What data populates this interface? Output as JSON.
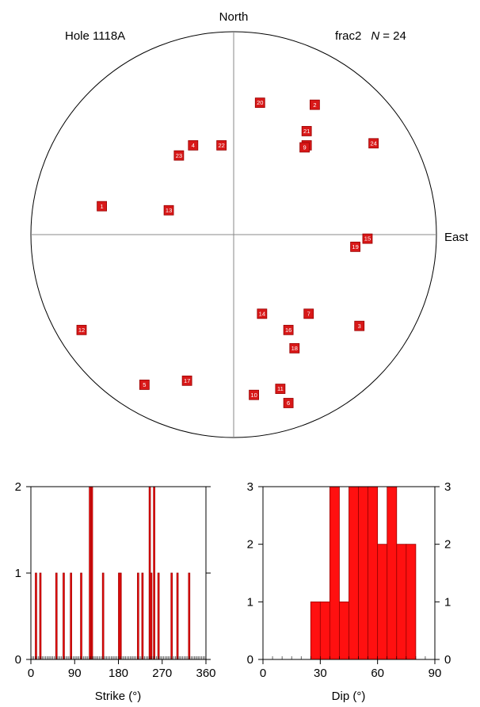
{
  "stereonet": {
    "north_label": "North",
    "east_label": "East",
    "hole_label": "Hole 1118A",
    "set_label": "frac2",
    "n_symbol": "N",
    "n_equals": "= 24"
  },
  "colors": {
    "fill": "#ff1010",
    "outline": "#990000",
    "axis": "#000000",
    "light_axis": "#888888"
  },
  "chart_data": [
    {
      "type": "scatter",
      "title": "",
      "projection": "stereonet",
      "points": [
        {
          "id": 1,
          "x": -0.65,
          "y": 0.14
        },
        {
          "id": 2,
          "x": 0.4,
          "y": 0.64
        },
        {
          "id": 3,
          "x": 0.62,
          "y": -0.45
        },
        {
          "id": 4,
          "x": -0.2,
          "y": 0.44
        },
        {
          "id": 5,
          "x": -0.44,
          "y": -0.74
        },
        {
          "id": 6,
          "x": 0.27,
          "y": -0.83
        },
        {
          "id": 7,
          "x": 0.37,
          "y": -0.39
        },
        {
          "id": 8,
          "x": 0.36,
          "y": 0.44
        },
        {
          "id": 9,
          "x": 0.35,
          "y": 0.43
        },
        {
          "id": 10,
          "x": 0.1,
          "y": -0.79
        },
        {
          "id": 11,
          "x": 0.23,
          "y": -0.76
        },
        {
          "id": 12,
          "x": -0.75,
          "y": -0.47
        },
        {
          "id": 13,
          "x": -0.32,
          "y": 0.12
        },
        {
          "id": 14,
          "x": 0.14,
          "y": -0.39
        },
        {
          "id": 15,
          "x": 0.66,
          "y": -0.02
        },
        {
          "id": 16,
          "x": 0.27,
          "y": -0.47
        },
        {
          "id": 17,
          "x": -0.23,
          "y": -0.72
        },
        {
          "id": 18,
          "x": 0.3,
          "y": -0.56
        },
        {
          "id": 19,
          "x": 0.6,
          "y": -0.06
        },
        {
          "id": 20,
          "x": 0.13,
          "y": 0.65
        },
        {
          "id": 21,
          "x": 0.36,
          "y": 0.51
        },
        {
          "id": 22,
          "x": -0.06,
          "y": 0.44
        },
        {
          "id": 23,
          "x": -0.27,
          "y": 0.39
        },
        {
          "id": 24,
          "x": 0.69,
          "y": 0.45
        }
      ]
    },
    {
      "type": "bar",
      "title": "",
      "xlabel": "Strike (°)",
      "ylabel": "",
      "xlim": [
        0,
        360
      ],
      "ylim": [
        0,
        2
      ],
      "xticks": [
        0,
        90,
        180,
        270,
        360
      ],
      "yticks": [
        0,
        1,
        2
      ],
      "bin_width": 3,
      "bins": [
        {
          "x": 9,
          "count": 1
        },
        {
          "x": 18,
          "count": 1
        },
        {
          "x": 51,
          "count": 1
        },
        {
          "x": 66,
          "count": 1
        },
        {
          "x": 81,
          "count": 1
        },
        {
          "x": 102,
          "count": 1
        },
        {
          "x": 120,
          "count": 2
        },
        {
          "x": 124,
          "count": 2
        },
        {
          "x": 147,
          "count": 1
        },
        {
          "x": 180,
          "count": 1
        },
        {
          "x": 183,
          "count": 1
        },
        {
          "x": 219,
          "count": 1
        },
        {
          "x": 228,
          "count": 1
        },
        {
          "x": 243,
          "count": 2
        },
        {
          "x": 246,
          "count": 1
        },
        {
          "x": 252,
          "count": 2
        },
        {
          "x": 261,
          "count": 1
        },
        {
          "x": 288,
          "count": 1
        },
        {
          "x": 300,
          "count": 1
        },
        {
          "x": 324,
          "count": 1
        }
      ]
    },
    {
      "type": "bar",
      "title": "",
      "xlabel": "Dip (°)",
      "ylabel": "",
      "xlim": [
        0,
        90
      ],
      "ylim": [
        0,
        3
      ],
      "xticks": [
        0,
        30,
        60,
        90
      ],
      "yticks": [
        0,
        1,
        2,
        3
      ],
      "bin_width": 5,
      "bins": [
        {
          "x": 25,
          "count": 1
        },
        {
          "x": 30,
          "count": 1
        },
        {
          "x": 35,
          "count": 3
        },
        {
          "x": 40,
          "count": 1
        },
        {
          "x": 45,
          "count": 3
        },
        {
          "x": 50,
          "count": 3
        },
        {
          "x": 55,
          "count": 3
        },
        {
          "x": 60,
          "count": 2
        },
        {
          "x": 65,
          "count": 3
        },
        {
          "x": 70,
          "count": 2
        },
        {
          "x": 75,
          "count": 2
        }
      ]
    }
  ]
}
